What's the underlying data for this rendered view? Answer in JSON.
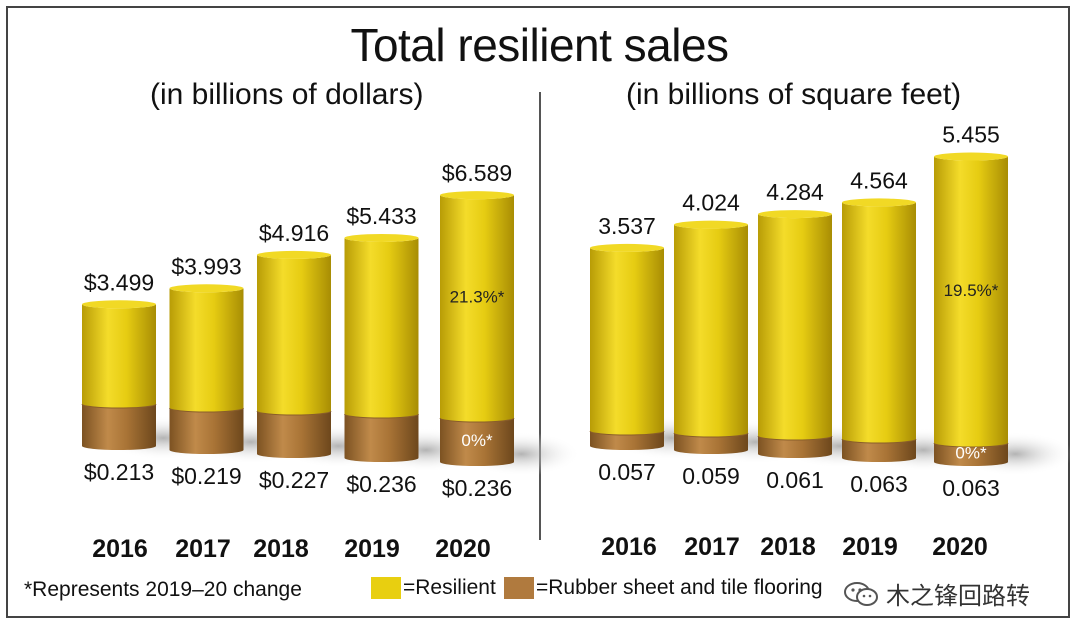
{
  "header": {
    "title": "Total resilient sales",
    "subtitle_left": "(in billions of dollars)",
    "subtitle_right": "(in billions of square feet)"
  },
  "footer": {
    "footnote": "*Represents 2019–20 change",
    "legend_resilient": "=Resilient",
    "legend_rubber": "=Rubber sheet and tile flooring",
    "watermark": "木之锋回路转",
    "watermark_icon": "wechat-icon"
  },
  "colors": {
    "resilient": "#e8cf10",
    "resilient_dark": "#b59a05",
    "rubber": "#b07a3e",
    "rubber_dark": "#7f5424"
  },
  "chart_data": [
    {
      "type": "bar",
      "title": "(in billions of dollars)",
      "categories": [
        "2016",
        "2017",
        "2018",
        "2019",
        "2020"
      ],
      "series": [
        {
          "name": "Resilient",
          "values": [
            3.499,
            3.993,
            4.916,
            5.433,
            6.589
          ],
          "labels": [
            "$3.499",
            "$3.993",
            "$4.916",
            "$5.433",
            "$6.589"
          ]
        },
        {
          "name": "Rubber sheet and tile flooring",
          "values": [
            0.213,
            0.219,
            0.227,
            0.236,
            0.236
          ],
          "labels": [
            "$0.213",
            "$0.219",
            "$0.227",
            "$0.236",
            "$0.236"
          ]
        }
      ],
      "annotations": [
        {
          "category": "2020",
          "series": "Resilient",
          "text": "21.3%*"
        },
        {
          "category": "2020",
          "series": "Rubber sheet and tile flooring",
          "text": "0%*"
        }
      ]
    },
    {
      "type": "bar",
      "title": "(in billions of square feet)",
      "categories": [
        "2016",
        "2017",
        "2018",
        "2019",
        "2020"
      ],
      "series": [
        {
          "name": "Resilient",
          "values": [
            3.537,
            4.024,
            4.284,
            4.564,
            5.455
          ],
          "labels": [
            "3.537",
            "4.024",
            "4.284",
            "4.564",
            "5.455"
          ]
        },
        {
          "name": "Rubber sheet and tile flooring",
          "values": [
            0.057,
            0.059,
            0.061,
            0.063,
            0.063
          ],
          "labels": [
            "0.057",
            "0.059",
            "0.061",
            "0.063",
            "0.063"
          ]
        }
      ],
      "annotations": [
        {
          "category": "2020",
          "series": "Resilient",
          "text": "19.5%*"
        },
        {
          "category": "2020",
          "series": "Rubber sheet and tile flooring",
          "text": "0%*"
        }
      ]
    }
  ]
}
